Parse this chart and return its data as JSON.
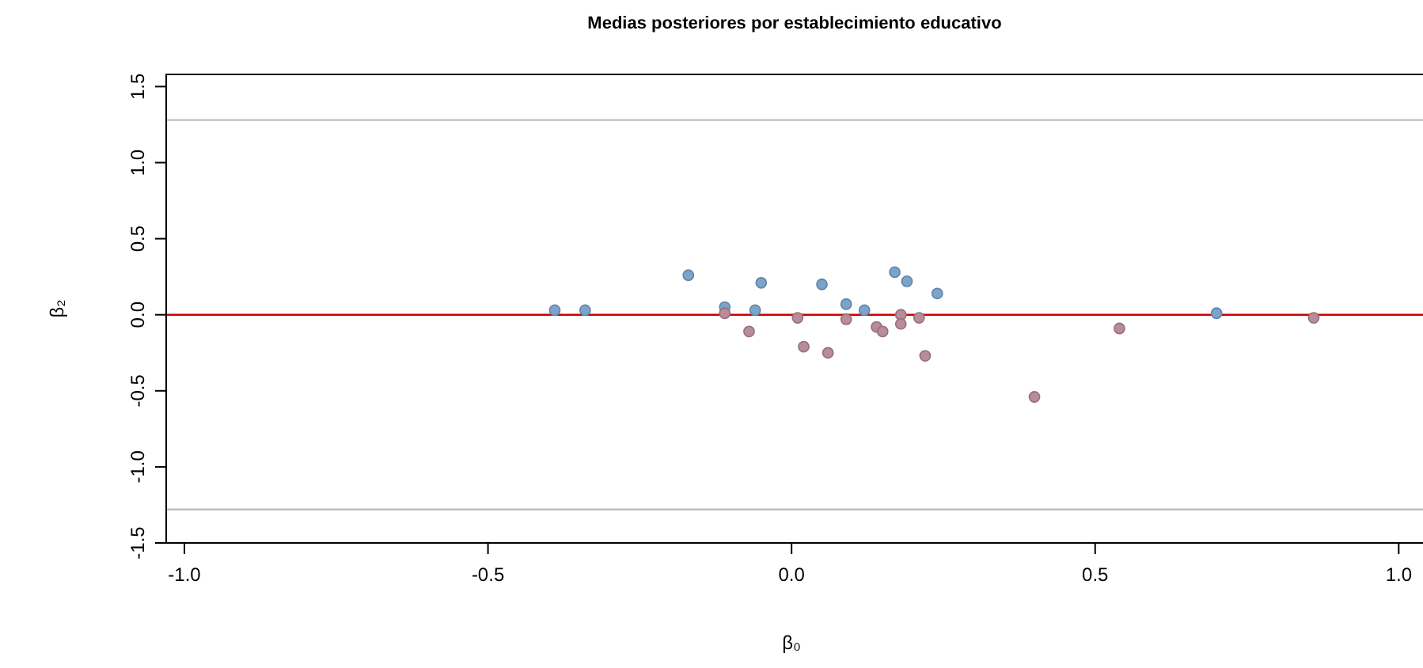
{
  "chart_data": {
    "type": "scatter",
    "title": "Medias posteriores por establecimiento educativo",
    "xlabel": "β₀",
    "ylabel": "β₂",
    "xlim": [
      -1.03,
      1.04
    ],
    "ylim": [
      -1.5,
      1.58
    ],
    "xticks": [
      {
        "value": -1,
        "label": "-1.0"
      },
      {
        "value": -0.5,
        "label": "-0.5"
      },
      {
        "value": 0,
        "label": "0.0"
      },
      {
        "value": 0.5,
        "label": "0.5"
      },
      {
        "value": 1,
        "label": "1.0"
      }
    ],
    "yticks": [
      {
        "value": -1.5,
        "label": "-1.5"
      },
      {
        "value": -1,
        "label": "-1.0"
      },
      {
        "value": -0.5,
        "label": "-0.5"
      },
      {
        "value": 0,
        "label": "0.0"
      },
      {
        "value": 0.5,
        "label": "0.5"
      },
      {
        "value": 1,
        "label": "1.0"
      },
      {
        "value": 1.5,
        "label": "1.5"
      }
    ],
    "marker": "circle",
    "grid": false,
    "ref_lines": [
      {
        "axis": "y",
        "value": 0,
        "color": "#cc0000"
      },
      {
        "axis": "y",
        "value": 1.28,
        "color": "#bebebe"
      },
      {
        "axis": "y",
        "value": -1.28,
        "color": "#bebebe"
      }
    ],
    "series": [
      {
        "color": "#7ba3cc",
        "x": [
          -0.39,
          -0.34,
          -0.17,
          -0.11,
          -0.05,
          -0.06,
          0.05,
          0.09,
          0.12,
          0.17,
          0.19,
          0.24,
          0.7
        ],
        "values": [
          0.03,
          0.03,
          0.26,
          0.05,
          0.21,
          0.03,
          0.2,
          0.07,
          0.03,
          0.28,
          0.22,
          0.14,
          0.01
        ]
      },
      {
        "color": "#b88c99",
        "x": [
          -0.11,
          -0.07,
          0.01,
          0.02,
          0.06,
          0.09,
          0.14,
          0.15,
          0.18,
          0.21,
          0.22,
          0.18,
          0.4,
          0.54,
          0.86
        ],
        "values": [
          0.01,
          -0.11,
          -0.02,
          -0.21,
          -0.25,
          -0.03,
          -0.08,
          -0.11,
          0,
          -0.02,
          -0.27,
          -0.06,
          -0.54,
          -0.09,
          -0.02
        ]
      }
    ]
  }
}
